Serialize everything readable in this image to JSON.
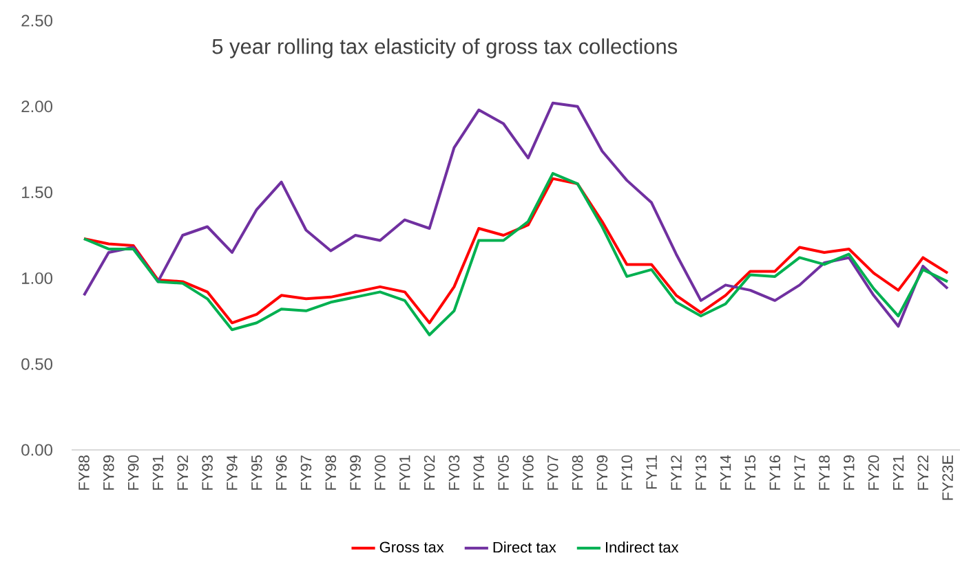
{
  "chart_data": {
    "type": "line",
    "title": "5 year rolling tax elasticity of gross tax collections",
    "categories": [
      "FY88",
      "FY89",
      "FY90",
      "FY91",
      "FY92",
      "FY93",
      "FY94",
      "FY95",
      "FY96",
      "FY97",
      "FY98",
      "FY99",
      "FY00",
      "FY01",
      "FY02",
      "FY03",
      "FY04",
      "FY05",
      "FY06",
      "FY07",
      "FY08",
      "FY09",
      "FY10",
      "FY11",
      "FY12",
      "FY13",
      "FY14",
      "FY15",
      "FY16",
      "FY17",
      "FY18",
      "FY19",
      "FY20",
      "FY21",
      "FY22",
      "FY23E"
    ],
    "series": [
      {
        "name": "Gross tax",
        "color": "#ff0000",
        "values": [
          1.23,
          1.2,
          1.19,
          0.99,
          0.98,
          0.92,
          0.74,
          0.79,
          0.9,
          0.88,
          0.89,
          0.92,
          0.95,
          0.92,
          0.74,
          0.95,
          1.29,
          1.25,
          1.31,
          1.58,
          1.55,
          1.33,
          1.08,
          1.08,
          0.9,
          0.8,
          0.9,
          1.04,
          1.04,
          1.18,
          1.15,
          1.17,
          1.03,
          0.93,
          1.12,
          1.03
        ]
      },
      {
        "name": "Direct tax",
        "color": "#7030a0",
        "values": [
          0.9,
          1.15,
          1.18,
          0.98,
          1.25,
          1.3,
          1.15,
          1.4,
          1.56,
          1.28,
          1.16,
          1.25,
          1.22,
          1.34,
          1.29,
          1.76,
          1.98,
          1.9,
          1.7,
          2.02,
          2.0,
          1.74,
          1.57,
          1.44,
          1.14,
          0.87,
          0.96,
          0.93,
          0.87,
          0.96,
          1.09,
          1.12,
          0.9,
          0.72,
          1.07,
          0.94
        ]
      },
      {
        "name": "Indirect tax",
        "color": "#00b050",
        "values": [
          1.23,
          1.17,
          1.17,
          0.98,
          0.97,
          0.88,
          0.7,
          0.74,
          0.82,
          0.81,
          0.86,
          0.89,
          0.92,
          0.87,
          0.67,
          0.81,
          1.22,
          1.22,
          1.33,
          1.61,
          1.55,
          1.3,
          1.01,
          1.05,
          0.86,
          0.78,
          0.85,
          1.02,
          1.01,
          1.12,
          1.08,
          1.14,
          0.94,
          0.78,
          1.05,
          0.98
        ]
      }
    ],
    "ylim": [
      0,
      2.5
    ],
    "yticks": [
      {
        "value": 0,
        "label": "0.00"
      },
      {
        "value": 0.5,
        "label": "0.50"
      },
      {
        "value": 1,
        "label": "1.00"
      },
      {
        "value": 1.5,
        "label": "1.50"
      },
      {
        "value": 2,
        "label": "2.00"
      },
      {
        "value": 2.5,
        "label": "2.50"
      }
    ],
    "legend": "bottom",
    "grid": false
  }
}
